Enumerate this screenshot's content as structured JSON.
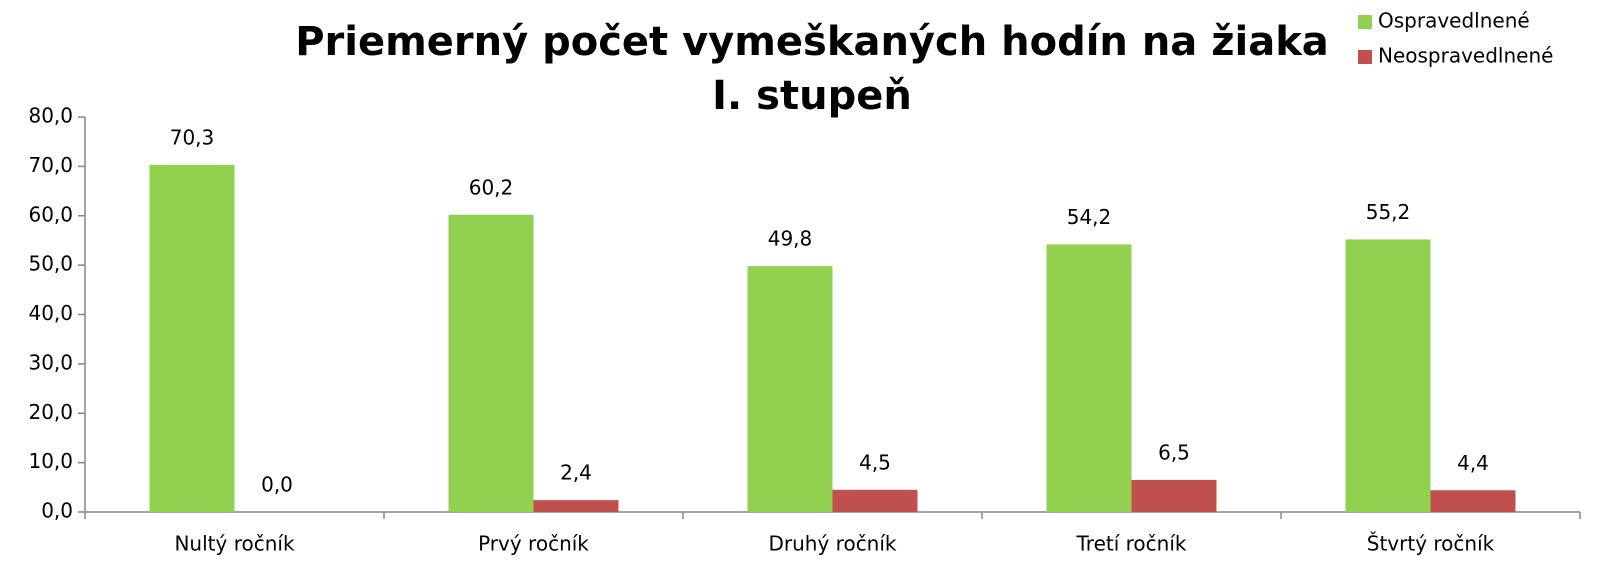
{
  "chart_data": {
    "type": "bar",
    "title": [
      "Priemerný počet vymeškaných hodín na žiaka",
      "I. stupeň"
    ],
    "categories": [
      "Nultý ročník",
      "Prvý ročník",
      "Druhý ročník",
      "Tretí ročník",
      "Štvrtý ročník"
    ],
    "series": [
      {
        "name": "Ospravedlnené",
        "color": "#92d050",
        "values": [
          70.3,
          60.2,
          49.8,
          54.2,
          55.2
        ],
        "value_labels": [
          "70,3",
          "60,2",
          "49,8",
          "54,2",
          "55,2"
        ]
      },
      {
        "name": "Neospravedlnené",
        "color": "#c0504d",
        "values": [
          0.0,
          2.4,
          4.5,
          6.5,
          4.4
        ],
        "value_labels": [
          "0,0",
          "2,4",
          "4,5",
          "6,5",
          "4,4"
        ]
      }
    ],
    "ylim": [
      0,
      80
    ],
    "yticks": [
      {
        "value": 0,
        "label": "0,0"
      },
      {
        "value": 10,
        "label": "10,0"
      },
      {
        "value": 20,
        "label": "20,0"
      },
      {
        "value": 30,
        "label": "30,0"
      },
      {
        "value": 40,
        "label": "40,0"
      },
      {
        "value": 50,
        "label": "50,0"
      },
      {
        "value": 60,
        "label": "60,0"
      },
      {
        "value": 70,
        "label": "70,0"
      },
      {
        "value": 80,
        "label": "80,0"
      }
    ],
    "legend": "top-right"
  }
}
